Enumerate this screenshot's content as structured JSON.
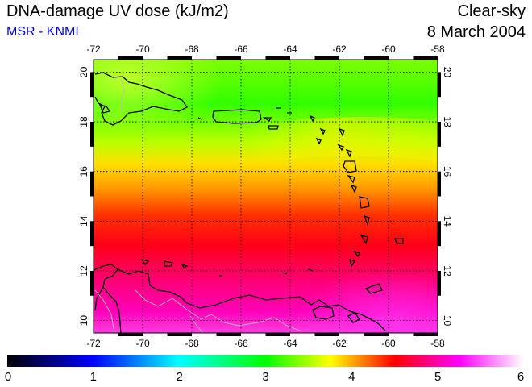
{
  "header": {
    "title": "DNA-damage UV dose (kJ/m2)",
    "source": "MSR - KNMI",
    "condition": "Clear-sky",
    "date": "8 March 2004"
  },
  "map": {
    "lon_range": [
      -72,
      -58
    ],
    "lat_range": [
      9.5,
      20.5
    ],
    "lon_ticks": [
      "-72",
      "-70",
      "-68",
      "-66",
      "-64",
      "-62",
      "-60",
      "-58"
    ],
    "lat_ticks": [
      "10",
      "12",
      "14",
      "16",
      "18",
      "20"
    ],
    "gridlines": "dotted",
    "coastline_color": "#000000",
    "border_color": "#bbbbbb"
  },
  "colorbar": {
    "min": 0,
    "max": 6,
    "labels": [
      "0",
      "1",
      "2",
      "3",
      "4",
      "5",
      "6"
    ],
    "stops": [
      "#000000",
      "#0000ff",
      "#00ffff",
      "#00ff00",
      "#ffff00",
      "#ff0000",
      "#ff00ff",
      "#ffffff"
    ]
  }
}
